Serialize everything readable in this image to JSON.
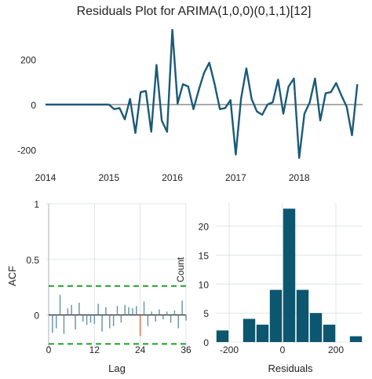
{
  "title": "Residuals Plot for ARIMA(1,0,0)(0,1,1)[12]",
  "colors": {
    "residual_line": "#1b5a78",
    "hist_bar": "#0d5670",
    "acf_bar": "#6f97a8",
    "acf_highlight": "#d9734f",
    "conf_band": "#1f9e2c",
    "axis": "#222222",
    "gridline": "#d7dde3"
  },
  "chart_data": [
    {
      "type": "line",
      "title": "Residuals Plot for ARIMA(1,0,0)(0,1,1)[12]",
      "xlabel": "",
      "ylabel": "",
      "x_tick_labels": [
        "2014",
        "2015",
        "2016",
        "2017",
        "2018"
      ],
      "y_tick_labels": [
        "200",
        "0",
        "-200"
      ],
      "xlim": [
        2014.0,
        2019.0
      ],
      "ylim": [
        -260,
        340
      ],
      "reference_line": 0,
      "x": [
        2014.0,
        2014.083,
        2014.167,
        2014.25,
        2014.333,
        2014.417,
        2014.5,
        2014.583,
        2014.667,
        2014.75,
        2014.833,
        2014.917,
        2015.0,
        2015.083,
        2015.167,
        2015.25,
        2015.333,
        2015.417,
        2015.5,
        2015.583,
        2015.667,
        2015.75,
        2015.833,
        2015.917,
        2016.0,
        2016.083,
        2016.167,
        2016.25,
        2016.333,
        2016.417,
        2016.5,
        2016.583,
        2016.667,
        2016.75,
        2016.833,
        2016.917,
        2017.0,
        2017.083,
        2017.167,
        2017.25,
        2017.333,
        2017.417,
        2017.5,
        2017.583,
        2017.667,
        2017.75,
        2017.833,
        2017.917,
        2018.0,
        2018.083,
        2018.167,
        2018.25,
        2018.333,
        2018.417,
        2018.5,
        2018.583,
        2018.667,
        2018.75,
        2018.833,
        2018.917
      ],
      "y": [
        0,
        0,
        0,
        0,
        0,
        0,
        0,
        0,
        0,
        0,
        0,
        0,
        0,
        -20,
        -15,
        -65,
        25,
        -125,
        55,
        60,
        -120,
        175,
        -70,
        -120,
        330,
        5,
        90,
        80,
        -20,
        65,
        140,
        185,
        90,
        -20,
        -15,
        20,
        -220,
        25,
        160,
        25,
        -30,
        -45,
        0,
        10,
        110,
        -40,
        80,
        115,
        -235,
        -40,
        10,
        115,
        -70,
        50,
        55,
        95,
        40,
        -10,
        -135,
        90
      ]
    },
    {
      "type": "bar",
      "title": "",
      "xlabel": "Lag",
      "ylabel": "ACF",
      "x_tick_labels": [
        "0",
        "12",
        "24",
        "36"
      ],
      "y_tick_labels": [
        "1",
        "0.5",
        "0"
      ],
      "xlim": [
        0,
        36
      ],
      "ylim": [
        -0.3,
        1.0
      ],
      "confidence_bounds": [
        0.26,
        -0.26
      ],
      "lags": [
        1,
        2,
        3,
        4,
        5,
        6,
        7,
        8,
        9,
        10,
        11,
        12,
        13,
        14,
        15,
        16,
        17,
        18,
        19,
        20,
        21,
        22,
        23,
        24,
        25,
        26,
        27,
        28,
        29,
        30,
        31,
        32,
        33,
        34,
        35,
        36
      ],
      "values": [
        -0.16,
        -0.12,
        0.18,
        -0.17,
        0.06,
        0.09,
        -0.13,
        0.11,
        -0.06,
        -0.09,
        -0.07,
        -0.08,
        0.1,
        -0.15,
        0.07,
        -0.12,
        -0.1,
        0.08,
        -0.07,
        0.09,
        0.07,
        0.06,
        0.08,
        -0.19,
        0.12,
        -0.1,
        0.03,
        -0.06,
        0.05,
        -0.04,
        0.03,
        -0.07,
        0.04,
        -0.12,
        0.13,
        -0.05
      ],
      "highlight_lag": 24
    },
    {
      "type": "bar",
      "title": "",
      "xlabel": "Residuals",
      "ylabel": "Count",
      "x_tick_labels": [
        "-200",
        "0",
        "200"
      ],
      "y_tick_labels": [
        "0",
        "5",
        "10",
        "15",
        "20"
      ],
      "xlim": [
        -250,
        300
      ],
      "ylim": [
        0,
        24
      ],
      "bin_width": 50,
      "bin_starts": [
        -250,
        -200,
        -150,
        -100,
        -50,
        0,
        50,
        100,
        150,
        200,
        250
      ],
      "counts": [
        2,
        0,
        4,
        3,
        9,
        23,
        9,
        5,
        3,
        0,
        1
      ]
    }
  ]
}
